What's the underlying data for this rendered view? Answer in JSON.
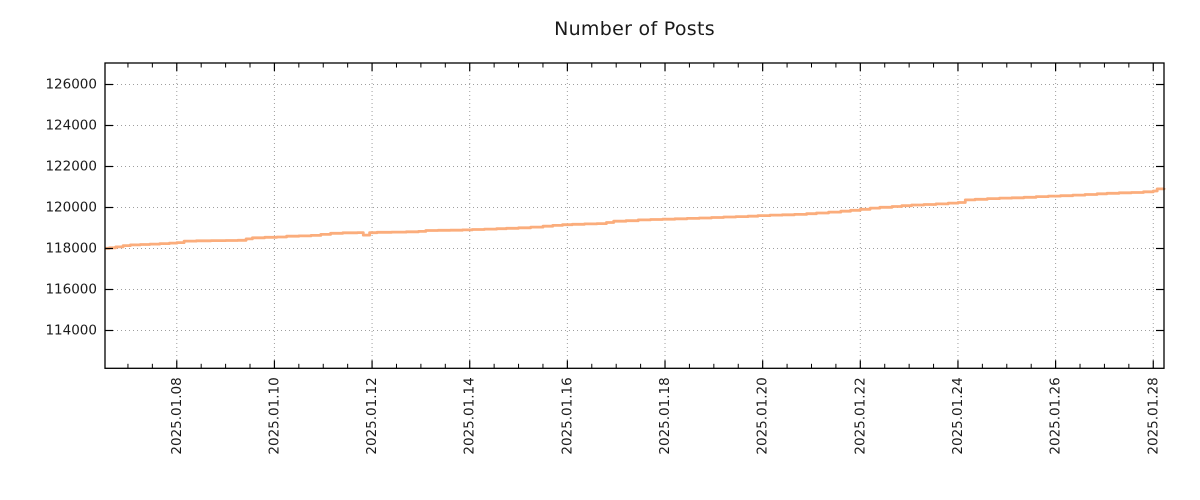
{
  "title": "Number of Posts",
  "colors": {
    "line": "#fbad7c",
    "grid": "#9e9e9e",
    "axis": "#000000",
    "tick_text": "#1a1a1a",
    "background": "#ffffff"
  },
  "chart_data": {
    "type": "line",
    "title": "Number of Posts",
    "xlabel": "",
    "ylabel": "",
    "legend": "none",
    "grid": true,
    "grid_style": "dotted",
    "line_style": "step-after",
    "x_unit": "day of January 2025 (fractional)",
    "xlim_days": [
      6.53,
      28.22
    ],
    "ylim": [
      112156,
      127049
    ],
    "x_major_tick_days": [
      8,
      10,
      12,
      14,
      16,
      18,
      20,
      22,
      24,
      26,
      28
    ],
    "x_tick_labels": [
      "2025.01.08",
      "2025.01.10",
      "2025.01.12",
      "2025.01.14",
      "2025.01.16",
      "2025.01.18",
      "2025.01.20",
      "2025.01.22",
      "2025.01.24",
      "2025.01.26",
      "2025.01.28"
    ],
    "x_minor_step_days": 0.5,
    "y_ticks": [
      114000,
      116000,
      118000,
      120000,
      122000,
      124000,
      126000
    ],
    "y_tick_labels": [
      "114000",
      "116000",
      "118000",
      "120000",
      "122000",
      "124000",
      "126000"
    ],
    "series": [
      {
        "name": "Number of Posts",
        "points": [
          [
            6.53,
            118010
          ],
          [
            6.62,
            118035
          ],
          [
            6.75,
            118080
          ],
          [
            6.9,
            118140
          ],
          [
            7.05,
            118175
          ],
          [
            7.25,
            118195
          ],
          [
            7.45,
            118215
          ],
          [
            7.65,
            118240
          ],
          [
            7.85,
            118265
          ],
          [
            8.0,
            118290
          ],
          [
            8.15,
            118360
          ],
          [
            8.4,
            118375
          ],
          [
            8.7,
            118385
          ],
          [
            9.0,
            118390
          ],
          [
            9.25,
            118400
          ],
          [
            9.42,
            118470
          ],
          [
            9.55,
            118520
          ],
          [
            9.8,
            118545
          ],
          [
            10.05,
            118560
          ],
          [
            10.25,
            118600
          ],
          [
            10.5,
            118615
          ],
          [
            10.75,
            118640
          ],
          [
            10.95,
            118690
          ],
          [
            11.15,
            118740
          ],
          [
            11.4,
            118765
          ],
          [
            11.7,
            118775
          ],
          [
            11.82,
            118655
          ],
          [
            11.95,
            118770
          ],
          [
            12.1,
            118790
          ],
          [
            12.4,
            118800
          ],
          [
            12.7,
            118815
          ],
          [
            12.95,
            118835
          ],
          [
            13.1,
            118880
          ],
          [
            13.35,
            118890
          ],
          [
            13.6,
            118895
          ],
          [
            13.85,
            118905
          ],
          [
            14.05,
            118925
          ],
          [
            14.3,
            118945
          ],
          [
            14.55,
            118965
          ],
          [
            14.75,
            118985
          ],
          [
            15.0,
            119010
          ],
          [
            15.25,
            119045
          ],
          [
            15.5,
            119090
          ],
          [
            15.7,
            119125
          ],
          [
            15.9,
            119160
          ],
          [
            16.1,
            119180
          ],
          [
            16.35,
            119200
          ],
          [
            16.6,
            119215
          ],
          [
            16.8,
            119270
          ],
          [
            16.95,
            119330
          ],
          [
            17.2,
            119355
          ],
          [
            17.45,
            119395
          ],
          [
            17.7,
            119415
          ],
          [
            17.95,
            119430
          ],
          [
            18.2,
            119450
          ],
          [
            18.45,
            119470
          ],
          [
            18.7,
            119490
          ],
          [
            18.95,
            119510
          ],
          [
            19.2,
            119535
          ],
          [
            19.45,
            119555
          ],
          [
            19.7,
            119575
          ],
          [
            19.9,
            119605
          ],
          [
            20.15,
            119630
          ],
          [
            20.4,
            119645
          ],
          [
            20.65,
            119665
          ],
          [
            20.9,
            119700
          ],
          [
            21.1,
            119730
          ],
          [
            21.35,
            119775
          ],
          [
            21.6,
            119820
          ],
          [
            21.8,
            119865
          ],
          [
            22.0,
            119910
          ],
          [
            22.2,
            119970
          ],
          [
            22.4,
            120010
          ],
          [
            22.65,
            120050
          ],
          [
            22.85,
            120090
          ],
          [
            23.05,
            120120
          ],
          [
            23.3,
            120145
          ],
          [
            23.55,
            120175
          ],
          [
            23.8,
            120215
          ],
          [
            24.0,
            120245
          ],
          [
            24.15,
            120370
          ],
          [
            24.35,
            120400
          ],
          [
            24.6,
            120435
          ],
          [
            24.85,
            120460
          ],
          [
            25.1,
            120475
          ],
          [
            25.35,
            120500
          ],
          [
            25.6,
            120530
          ],
          [
            25.85,
            120555
          ],
          [
            26.1,
            120575
          ],
          [
            26.35,
            120605
          ],
          [
            26.6,
            120635
          ],
          [
            26.85,
            120670
          ],
          [
            27.05,
            120695
          ],
          [
            27.3,
            120715
          ],
          [
            27.55,
            120730
          ],
          [
            27.8,
            120765
          ],
          [
            28.0,
            120805
          ],
          [
            28.08,
            120905
          ],
          [
            28.22,
            120950
          ]
        ]
      }
    ]
  }
}
